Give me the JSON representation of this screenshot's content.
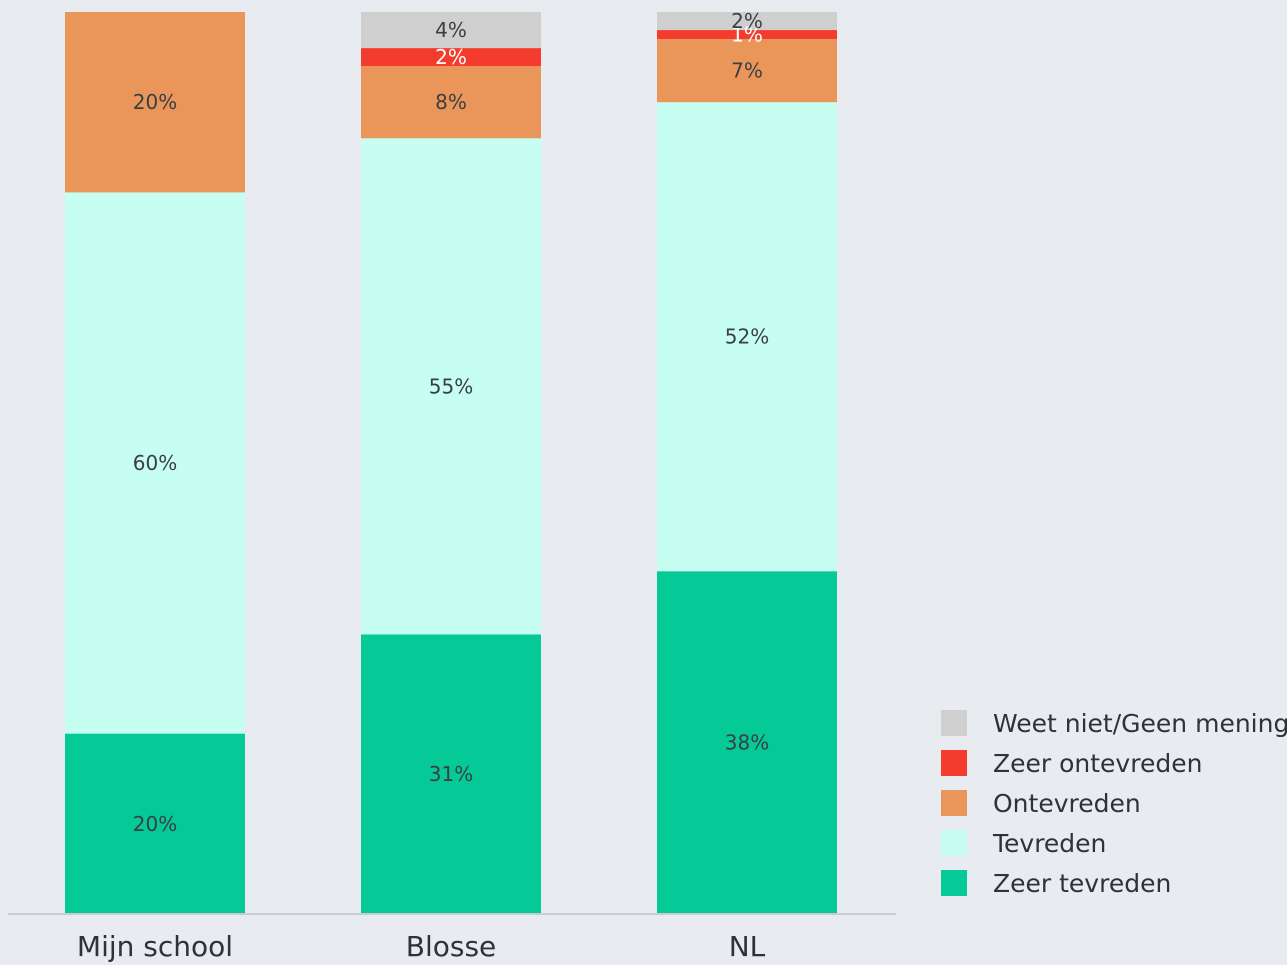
{
  "chart_data": {
    "type": "bar",
    "stacked": true,
    "categories": [
      "Mijn school",
      "Blosse",
      "NL"
    ],
    "series": [
      {
        "name": "Zeer tevreden",
        "color": "#05c997",
        "values": [
          20,
          31,
          38
        ],
        "labels": [
          "20%",
          "31%",
          "38%"
        ]
      },
      {
        "name": "Tevreden",
        "color": "#c6fff2",
        "values": [
          60,
          55,
          52
        ],
        "labels": [
          "60%",
          "55%",
          "52%"
        ]
      },
      {
        "name": "Ontevreden",
        "color": "#ea965a",
        "values": [
          20,
          8,
          7
        ],
        "labels": [
          "20%",
          "8%",
          "7%"
        ]
      },
      {
        "name": "Zeer ontevreden",
        "color": "#f33c2d",
        "values": [
          0,
          2,
          1
        ],
        "labels": [
          "",
          "2%",
          "1%"
        ]
      },
      {
        "name": "Weet niet/Geen mening",
        "color": "#d0cfd0",
        "values": [
          0,
          4,
          2
        ],
        "labels": [
          "",
          "4%",
          "2%"
        ]
      }
    ],
    "legend_order": [
      "Weet niet/Geen mening",
      "Zeer ontevreden",
      "Ontevreden",
      "Tevreden",
      "Zeer tevreden"
    ],
    "legend_position": "bottom-right",
    "ylim": [
      0,
      100
    ],
    "grid": false,
    "title": "",
    "xlabel": "",
    "ylabel": ""
  }
}
